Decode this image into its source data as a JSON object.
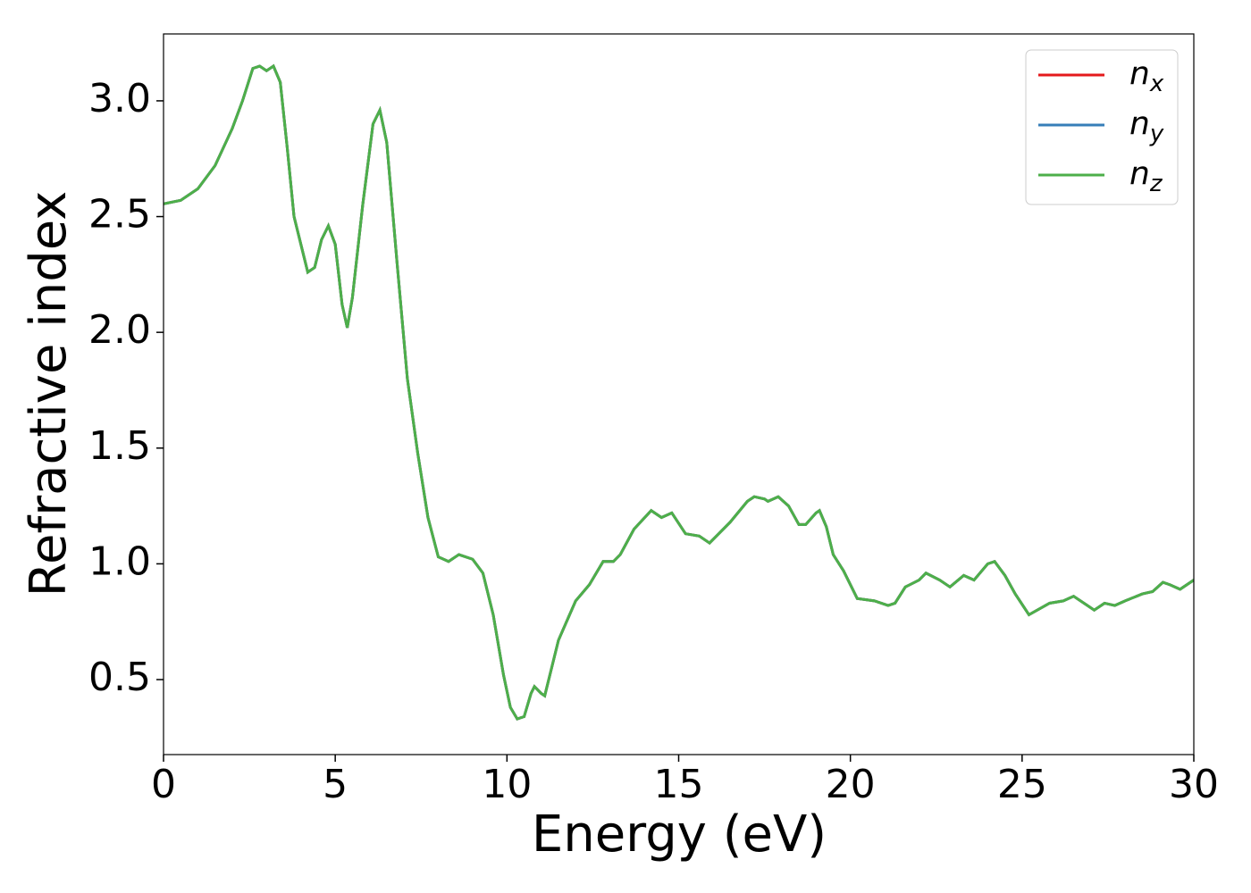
{
  "chart_data": {
    "type": "line",
    "xlabel": "Energy (eV)",
    "ylabel": "Refractive index",
    "x": [
      0,
      0.5,
      1,
      1.5,
      2,
      2.3,
      2.6,
      2.8,
      3.0,
      3.2,
      3.4,
      3.6,
      3.8,
      4.0,
      4.2,
      4.4,
      4.6,
      4.8,
      5.0,
      5.2,
      5.35,
      5.5,
      5.8,
      6.1,
      6.3,
      6.5,
      6.8,
      7.1,
      7.4,
      7.7,
      8.0,
      8.3,
      8.6,
      9.0,
      9.3,
      9.6,
      9.9,
      10.1,
      10.3,
      10.5,
      10.7,
      10.8,
      11.0,
      11.1,
      11.3,
      11.5,
      12.0,
      12.4,
      12.8,
      13.1,
      13.3,
      13.7,
      14.2,
      14.5,
      14.8,
      15.2,
      15.6,
      15.9,
      16.5,
      17.0,
      17.2,
      17.5,
      17.6,
      17.9,
      18.2,
      18.5,
      18.7,
      19.0,
      19.1,
      19.3,
      19.5,
      19.8,
      20.2,
      20.7,
      21.1,
      21.3,
      21.6,
      22.0,
      22.2,
      22.6,
      22.9,
      23.3,
      23.6,
      24.0,
      24.2,
      24.5,
      24.8,
      25.2,
      25.8,
      26.2,
      26.5,
      26.9,
      27.1,
      27.4,
      27.7,
      28.0,
      28.5,
      28.8,
      29.1,
      29.3,
      29.6,
      30.0
    ],
    "series": [
      {
        "name": "nx",
        "color": "#e41a1c",
        "values": [
          2.555,
          2.57,
          2.62,
          2.72,
          2.88,
          3.0,
          3.14,
          3.15,
          3.13,
          3.15,
          3.08,
          2.8,
          2.5,
          2.38,
          2.26,
          2.28,
          2.4,
          2.46,
          2.38,
          2.12,
          2.02,
          2.15,
          2.55,
          2.9,
          2.96,
          2.82,
          2.3,
          1.8,
          1.48,
          1.2,
          1.03,
          1.01,
          1.04,
          1.02,
          0.96,
          0.78,
          0.52,
          0.38,
          0.33,
          0.34,
          0.44,
          0.47,
          0.44,
          0.43,
          0.55,
          0.67,
          0.84,
          0.91,
          1.01,
          1.01,
          1.04,
          1.15,
          1.23,
          1.2,
          1.22,
          1.13,
          1.12,
          1.09,
          1.18,
          1.27,
          1.29,
          1.28,
          1.27,
          1.29,
          1.25,
          1.17,
          1.17,
          1.22,
          1.23,
          1.16,
          1.04,
          0.97,
          0.85,
          0.84,
          0.82,
          0.83,
          0.9,
          0.93,
          0.96,
          0.93,
          0.9,
          0.95,
          0.93,
          1.0,
          1.01,
          0.95,
          0.87,
          0.78,
          0.83,
          0.84,
          0.86,
          0.82,
          0.8,
          0.83,
          0.82,
          0.84,
          0.87,
          0.88,
          0.92,
          0.91,
          0.89,
          0.93
        ]
      },
      {
        "name": "ny",
        "color": "#377eb8",
        "values": [
          2.555,
          2.57,
          2.62,
          2.72,
          2.88,
          3.0,
          3.14,
          3.15,
          3.13,
          3.15,
          3.08,
          2.8,
          2.5,
          2.38,
          2.26,
          2.28,
          2.4,
          2.46,
          2.38,
          2.12,
          2.02,
          2.15,
          2.55,
          2.9,
          2.96,
          2.82,
          2.3,
          1.8,
          1.48,
          1.2,
          1.03,
          1.01,
          1.04,
          1.02,
          0.96,
          0.78,
          0.52,
          0.38,
          0.33,
          0.34,
          0.44,
          0.47,
          0.44,
          0.43,
          0.55,
          0.67,
          0.84,
          0.91,
          1.01,
          1.01,
          1.04,
          1.15,
          1.23,
          1.2,
          1.22,
          1.13,
          1.12,
          1.09,
          1.18,
          1.27,
          1.29,
          1.28,
          1.27,
          1.29,
          1.25,
          1.17,
          1.17,
          1.22,
          1.23,
          1.16,
          1.04,
          0.97,
          0.85,
          0.84,
          0.82,
          0.83,
          0.9,
          0.93,
          0.96,
          0.93,
          0.9,
          0.95,
          0.93,
          1.0,
          1.01,
          0.95,
          0.87,
          0.78,
          0.83,
          0.84,
          0.86,
          0.82,
          0.8,
          0.83,
          0.82,
          0.84,
          0.87,
          0.88,
          0.92,
          0.91,
          0.89,
          0.93
        ]
      },
      {
        "name": "nz",
        "color": "#4daf4a",
        "values": [
          2.555,
          2.57,
          2.62,
          2.72,
          2.88,
          3.0,
          3.14,
          3.15,
          3.13,
          3.15,
          3.08,
          2.8,
          2.5,
          2.38,
          2.26,
          2.28,
          2.4,
          2.46,
          2.38,
          2.12,
          2.02,
          2.15,
          2.55,
          2.9,
          2.96,
          2.82,
          2.3,
          1.8,
          1.48,
          1.2,
          1.03,
          1.01,
          1.04,
          1.02,
          0.96,
          0.78,
          0.52,
          0.38,
          0.33,
          0.34,
          0.44,
          0.47,
          0.44,
          0.43,
          0.55,
          0.67,
          0.84,
          0.91,
          1.01,
          1.01,
          1.04,
          1.15,
          1.23,
          1.2,
          1.22,
          1.13,
          1.12,
          1.09,
          1.18,
          1.27,
          1.29,
          1.28,
          1.27,
          1.29,
          1.25,
          1.17,
          1.17,
          1.22,
          1.23,
          1.16,
          1.04,
          0.97,
          0.85,
          0.84,
          0.82,
          0.83,
          0.9,
          0.93,
          0.96,
          0.93,
          0.9,
          0.95,
          0.93,
          1.0,
          1.01,
          0.95,
          0.87,
          0.78,
          0.83,
          0.84,
          0.86,
          0.82,
          0.8,
          0.83,
          0.82,
          0.84,
          0.87,
          0.88,
          0.92,
          0.91,
          0.89,
          0.93
        ]
      }
    ],
    "xlim": [
      0,
      30
    ],
    "xticks": [
      0,
      5,
      10,
      15,
      20,
      25,
      30
    ],
    "ylim": [
      0.176,
      3.289
    ],
    "yticks": [
      0.5,
      {
        "value": 1.0,
        "label": "1.0"
      },
      1.5,
      {
        "value": 2.0,
        "label": "2.0"
      },
      2.5,
      {
        "value": 3.0,
        "label": "3.0"
      }
    ],
    "grid": false,
    "legend": "upper right"
  }
}
